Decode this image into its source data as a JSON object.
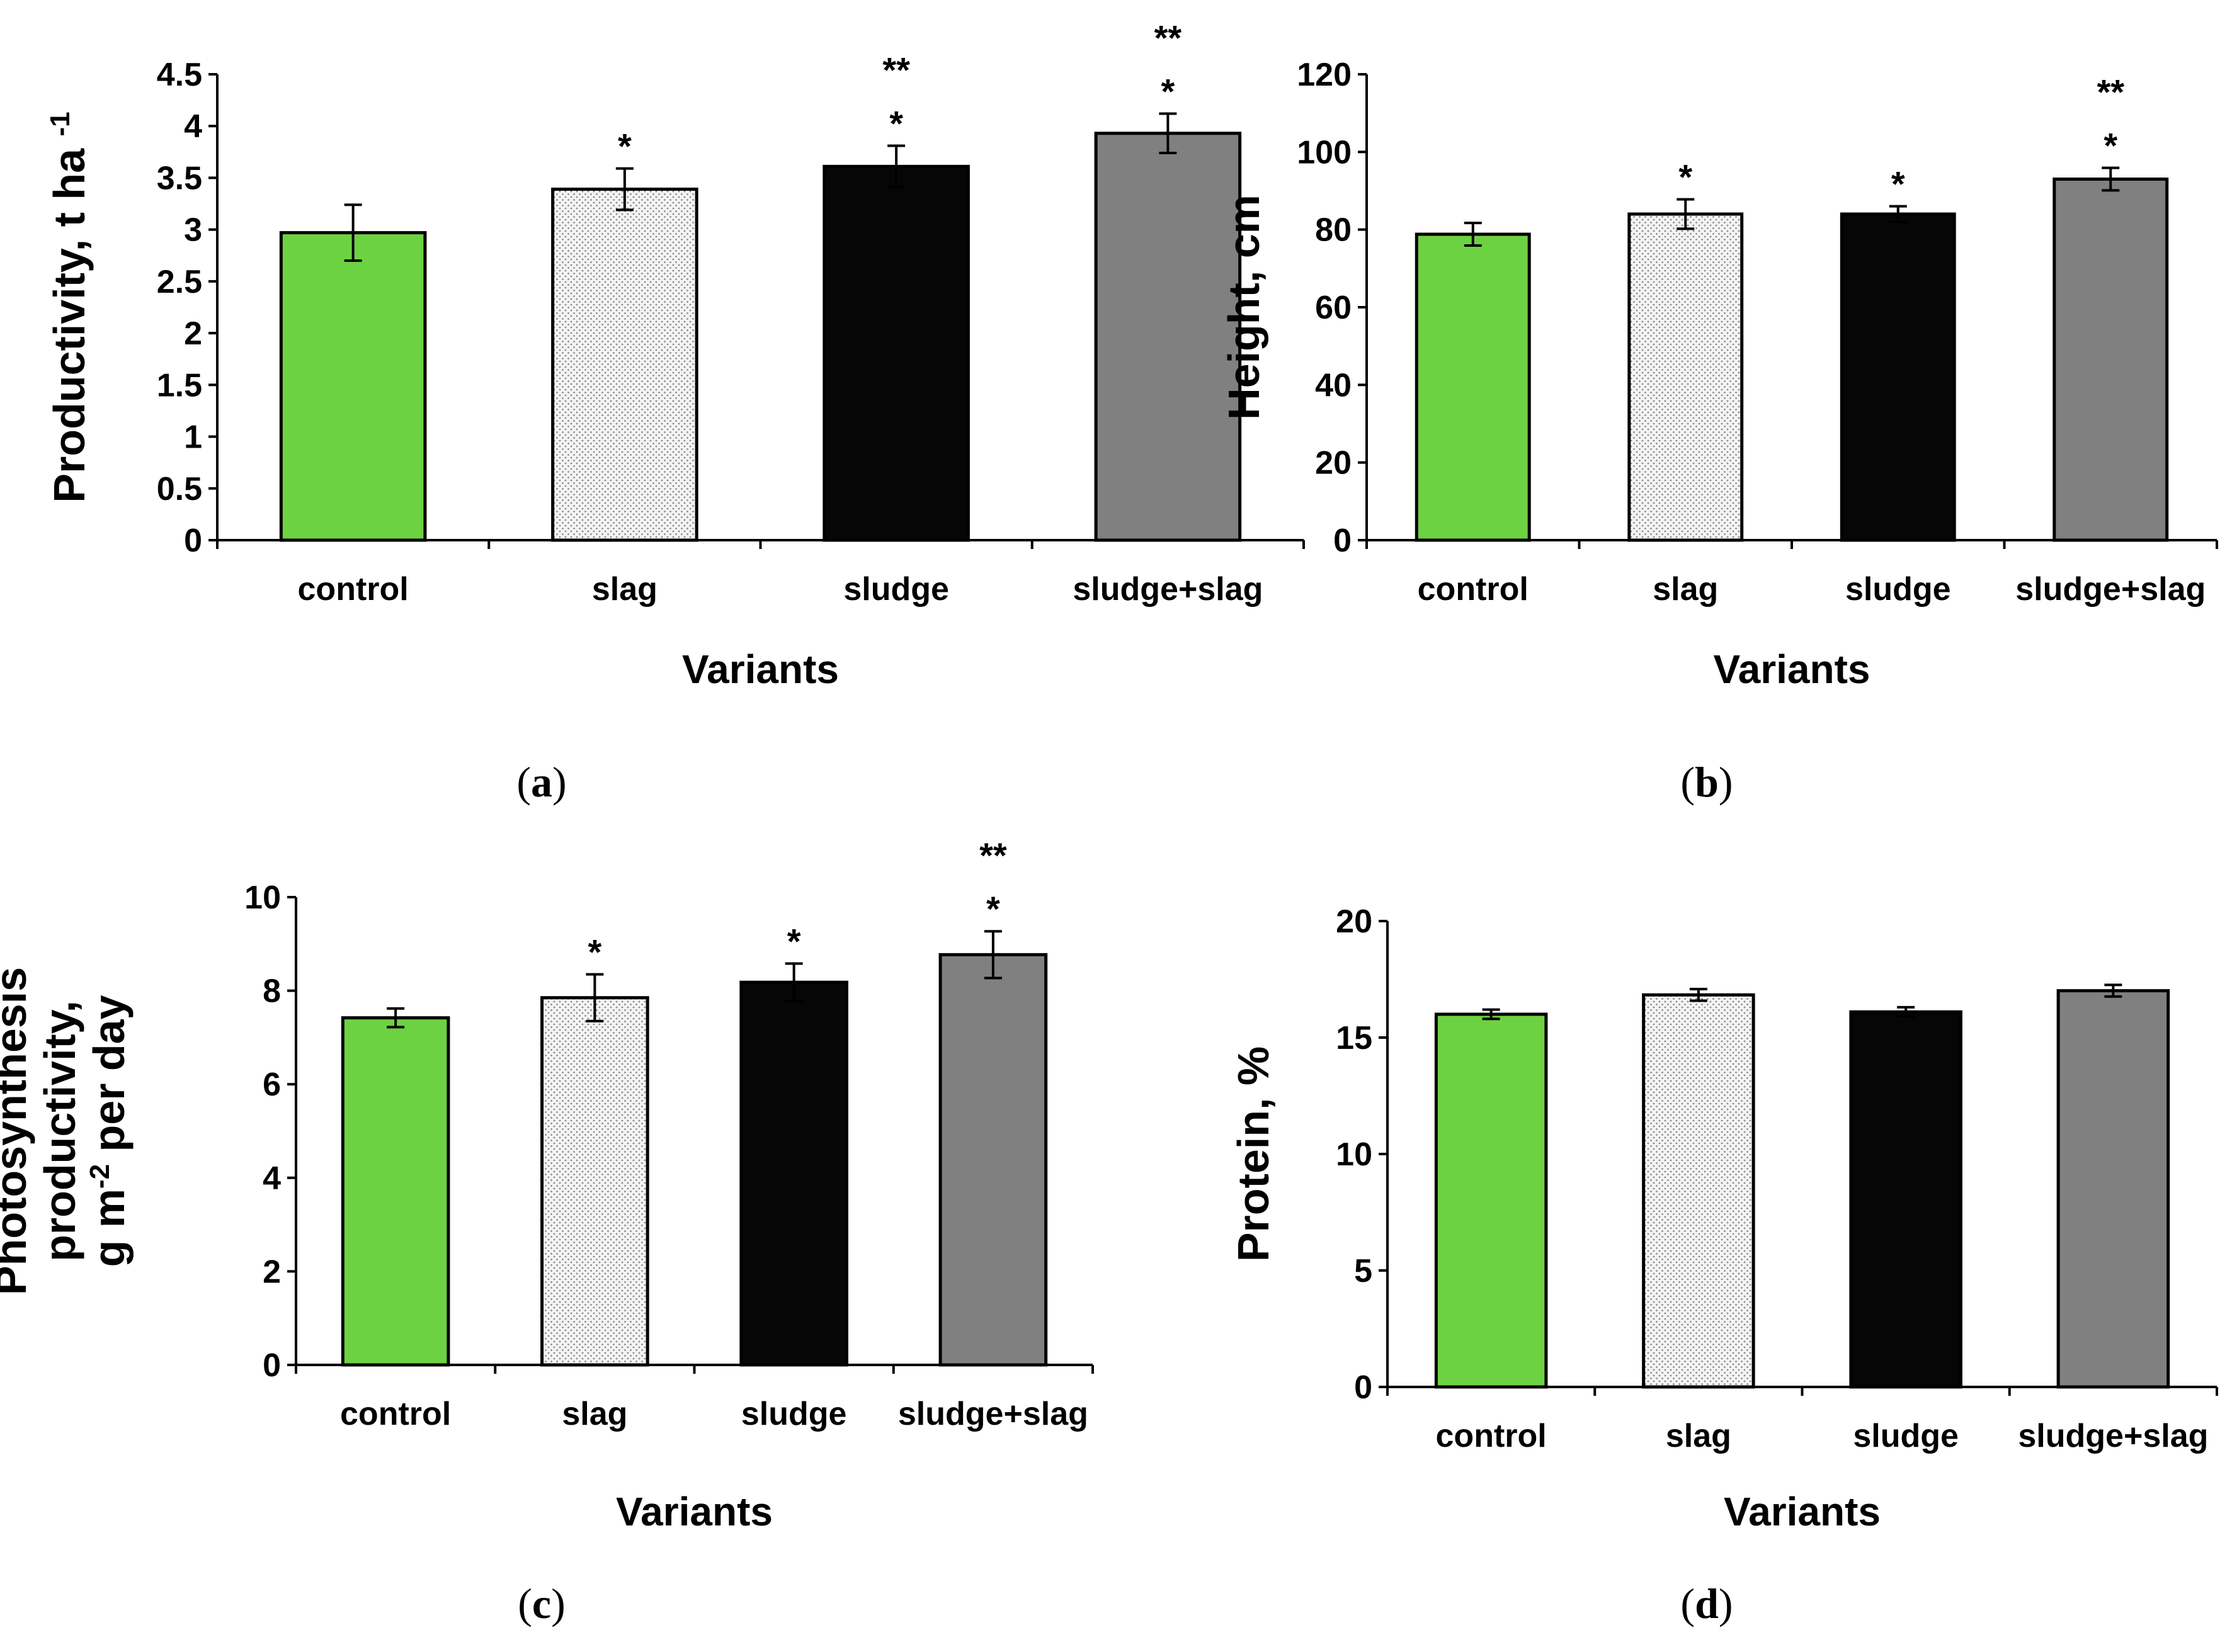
{
  "bar_styles": {
    "control": {
      "fill": "#6dd242"
    },
    "slag": {
      "fill": "#f2f2f2",
      "pattern": "dots"
    },
    "sludge": {
      "fill": "#060606"
    },
    "sludge+slag": {
      "fill": "#808080"
    }
  },
  "chart_data": [
    {
      "type": "bar",
      "panel_label": "a",
      "title": "",
      "xlabel": "Variants",
      "ylabel_lines": [
        "Productivity, t ha"
      ],
      "ylabel_superscript": "-1",
      "categories": [
        "control",
        "slag",
        "sludge",
        "sludge+slag"
      ],
      "values": [
        2.97,
        3.39,
        3.61,
        3.93
      ],
      "errors": [
        0.27,
        0.2,
        0.2,
        0.19
      ],
      "significance": [
        [],
        [
          "*"
        ],
        [
          "*",
          "**"
        ],
        [
          "*",
          "**"
        ]
      ],
      "ylim": [
        0,
        4.5
      ],
      "yticks": [
        0,
        0.5,
        1,
        1.5,
        2,
        2.5,
        3,
        3.5,
        4,
        4.5
      ],
      "ytick_labels": [
        "0",
        "0.5",
        "1",
        "1.5",
        "2",
        "2.5",
        "3",
        "3.5",
        "4",
        "4.5"
      ],
      "grid": false
    },
    {
      "type": "bar",
      "panel_label": "b",
      "title": "",
      "xlabel": "Variants",
      "ylabel_lines": [
        "Height, cm"
      ],
      "categories": [
        "control",
        "slag",
        "sludge",
        "sludge+slag"
      ],
      "values": [
        78.8,
        84,
        84,
        93
      ],
      "errors": [
        2.9,
        3.8,
        2,
        2.9
      ],
      "significance": [
        [],
        [
          "*"
        ],
        [
          "*"
        ],
        [
          "*",
          "**"
        ]
      ],
      "ylim": [
        0,
        120
      ],
      "yticks": [
        0,
        20,
        40,
        60,
        80,
        100,
        120
      ],
      "ytick_labels": [
        "0",
        "20",
        "40",
        "60",
        "80",
        "100",
        "120"
      ],
      "grid": false
    },
    {
      "type": "bar",
      "panel_label": "c",
      "title": "",
      "xlabel": "Variants",
      "ylabel_lines": [
        "Photosynthesis",
        "productivity,",
        "g m per day"
      ],
      "ylabel_superscript": "-2",
      "categories": [
        "control",
        "slag",
        "sludge",
        "sludge+slag"
      ],
      "values": [
        7.42,
        7.85,
        8.18,
        8.77
      ],
      "errors": [
        0.2,
        0.5,
        0.4,
        0.5
      ],
      "significance": [
        [],
        [
          "*"
        ],
        [
          "*"
        ],
        [
          "*",
          "**"
        ]
      ],
      "ylim": [
        0,
        10
      ],
      "yticks": [
        0,
        2,
        4,
        6,
        8,
        10
      ],
      "ytick_labels": [
        "0",
        "2",
        "4",
        "6",
        "8",
        "10"
      ],
      "grid": false
    },
    {
      "type": "bar",
      "panel_label": "d",
      "title": "",
      "xlabel": "Variants",
      "ylabel_lines": [
        "Protein, %"
      ],
      "categories": [
        "control",
        "slag",
        "sludge",
        "sludge+slag"
      ],
      "values": [
        16,
        16.83,
        16.1,
        17.01
      ],
      "errors": [
        0.2,
        0.25,
        0.2,
        0.25
      ],
      "significance": [
        [],
        [],
        [],
        []
      ],
      "ylim": [
        0,
        20
      ],
      "yticks": [
        0,
        5,
        10,
        15,
        20
      ],
      "ytick_labels": [
        "0",
        "5",
        "10",
        "15",
        "20"
      ],
      "grid": false
    }
  ]
}
